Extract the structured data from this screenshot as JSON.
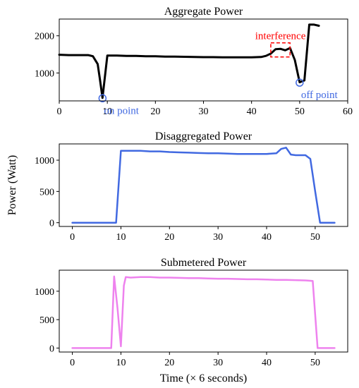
{
  "chart_data": [
    {
      "type": "line",
      "title": "Aggregate Power",
      "xlabel": "",
      "ylabel": "",
      "xlim": [
        0,
        60
      ],
      "ylim": [
        250,
        2450
      ],
      "xticks": [
        0,
        10,
        20,
        30,
        40,
        50,
        60
      ],
      "yticks": [
        1000,
        2000
      ],
      "grid": false,
      "series": [
        {
          "color": "#000000",
          "x": [
            0,
            2,
            4,
            6,
            7,
            8,
            8.5,
            9,
            10,
            12,
            14,
            16,
            18,
            20,
            22,
            24,
            26,
            28,
            30,
            32,
            34,
            36,
            38,
            40,
            42,
            43,
            44,
            45,
            46,
            47,
            48,
            49,
            50,
            51,
            52,
            53,
            54
          ],
          "y": [
            1490,
            1480,
            1480,
            1480,
            1450,
            1240,
            800,
            330,
            1470,
            1470,
            1460,
            1460,
            1450,
            1450,
            1440,
            1440,
            1435,
            1430,
            1425,
            1425,
            1420,
            1420,
            1420,
            1420,
            1430,
            1460,
            1520,
            1640,
            1650,
            1610,
            1670,
            1350,
            750,
            800,
            2300,
            2300,
            2270
          ]
        }
      ],
      "annotations": [
        {
          "text": "interference",
          "color": "#ff0000",
          "box_x": [
            44,
            48
          ],
          "box_y": [
            1430,
            1810
          ]
        },
        {
          "text": "on point",
          "color": "#4169e1",
          "x": 9,
          "y": 320
        },
        {
          "text": "off point",
          "color": "#4169e1",
          "x": 50,
          "y": 740
        }
      ]
    },
    {
      "type": "line",
      "title": "Disaggregated Power",
      "xlabel": "",
      "ylabel": "Power (Watt)",
      "xlim": [
        -2.7,
        56.7
      ],
      "ylim": [
        -60,
        1260
      ],
      "xticks": [
        0,
        10,
        20,
        30,
        40,
        50
      ],
      "yticks": [
        0,
        500,
        1000
      ],
      "grid": false,
      "series": [
        {
          "color": "#4169e1",
          "x": [
            0,
            2,
            4,
            6,
            8,
            9,
            10,
            12,
            14,
            16,
            18,
            20,
            22,
            24,
            26,
            28,
            30,
            32,
            34,
            36,
            38,
            40,
            42,
            43,
            44,
            45,
            46,
            48,
            49,
            50,
            51,
            52,
            54
          ],
          "y": [
            0,
            0,
            0,
            0,
            0,
            0,
            1150,
            1150,
            1150,
            1140,
            1140,
            1130,
            1125,
            1120,
            1115,
            1110,
            1110,
            1105,
            1100,
            1100,
            1100,
            1100,
            1110,
            1180,
            1200,
            1090,
            1080,
            1080,
            1020,
            500,
            0,
            0,
            0
          ]
        }
      ]
    },
    {
      "type": "line",
      "title": "Submetered Power",
      "xlabel": "Time (× 6 seconds)",
      "ylabel": "",
      "xlim": [
        -2.7,
        56.7
      ],
      "ylim": [
        -70,
        1370
      ],
      "xticks": [
        0,
        10,
        20,
        30,
        40,
        50
      ],
      "yticks": [
        0,
        500,
        1000
      ],
      "grid": false,
      "series": [
        {
          "color": "#ee82ee",
          "x": [
            0,
            2,
            4,
            6,
            8,
            8.6,
            9.3,
            10,
            10.6,
            11,
            12,
            14,
            16,
            18,
            20,
            22,
            24,
            26,
            28,
            30,
            32,
            34,
            36,
            38,
            40,
            42,
            44,
            46,
            48,
            49.5,
            50.5,
            52,
            54
          ],
          "y": [
            0,
            0,
            0,
            0,
            0,
            1260,
            700,
            30,
            1100,
            1250,
            1240,
            1250,
            1250,
            1240,
            1240,
            1235,
            1230,
            1230,
            1225,
            1220,
            1220,
            1215,
            1210,
            1210,
            1205,
            1200,
            1200,
            1195,
            1190,
            1180,
            0,
            0,
            0
          ]
        }
      ]
    }
  ]
}
